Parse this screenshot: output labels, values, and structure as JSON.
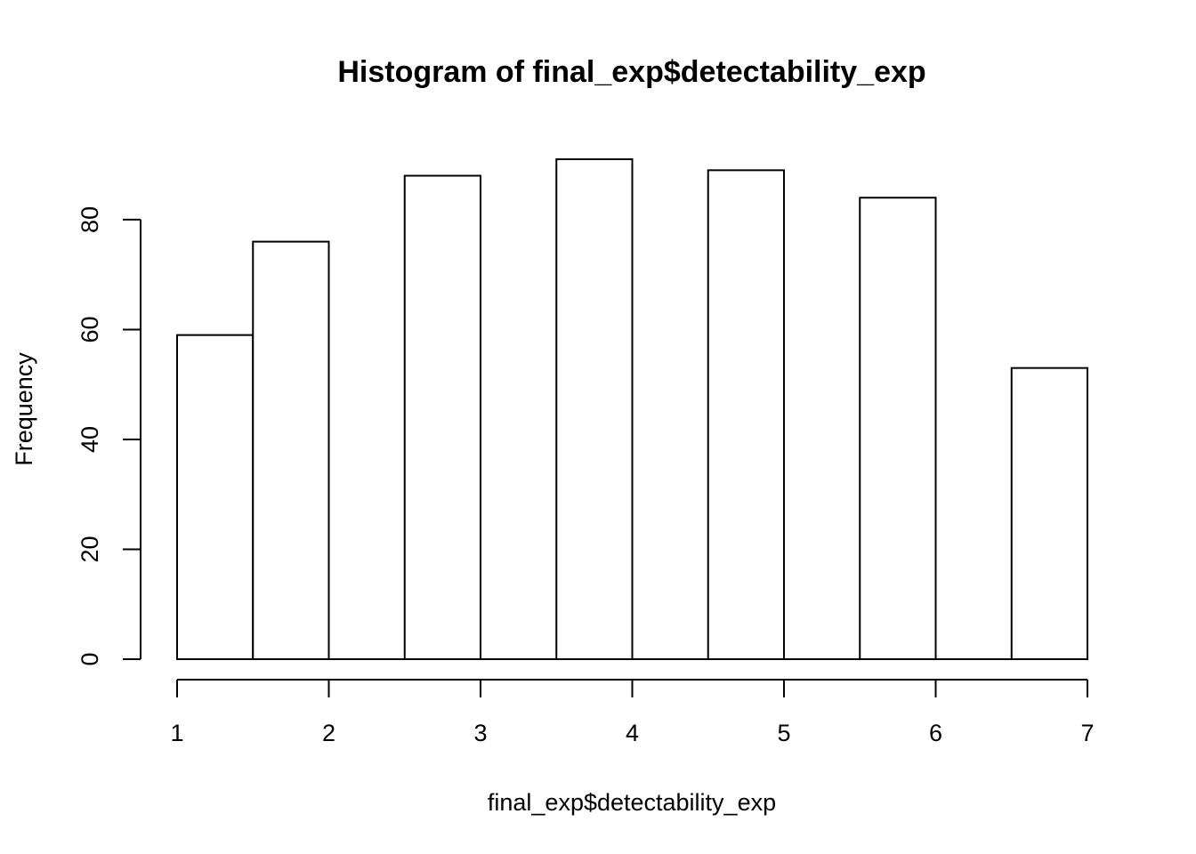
{
  "chart_data": {
    "type": "bar",
    "title": "Histogram of final_exp$detectability_exp",
    "xlabel": "final_exp$detectability_exp",
    "ylabel": "Frequency",
    "bins": [
      {
        "from": 1.0,
        "to": 1.5,
        "count": 59
      },
      {
        "from": 1.5,
        "to": 2.0,
        "count": 76
      },
      {
        "from": 2.0,
        "to": 2.5,
        "count": 0
      },
      {
        "from": 2.5,
        "to": 3.0,
        "count": 88
      },
      {
        "from": 3.0,
        "to": 3.5,
        "count": 0
      },
      {
        "from": 3.5,
        "to": 4.0,
        "count": 91
      },
      {
        "from": 4.0,
        "to": 4.5,
        "count": 0
      },
      {
        "from": 4.5,
        "to": 5.0,
        "count": 89
      },
      {
        "from": 5.0,
        "to": 5.5,
        "count": 0
      },
      {
        "from": 5.5,
        "to": 6.0,
        "count": 84
      },
      {
        "from": 6.0,
        "to": 6.5,
        "count": 0
      },
      {
        "from": 6.5,
        "to": 7.0,
        "count": 53
      }
    ],
    "xlim": [
      1,
      7
    ],
    "ylim": [
      0,
      91
    ],
    "xticks": [
      1,
      2,
      3,
      4,
      5,
      6,
      7
    ],
    "yticks": [
      0,
      20,
      40,
      60,
      80
    ],
    "grid": false,
    "colors": {
      "bar_fill": "#ffffff",
      "bar_stroke": "#000000"
    }
  }
}
